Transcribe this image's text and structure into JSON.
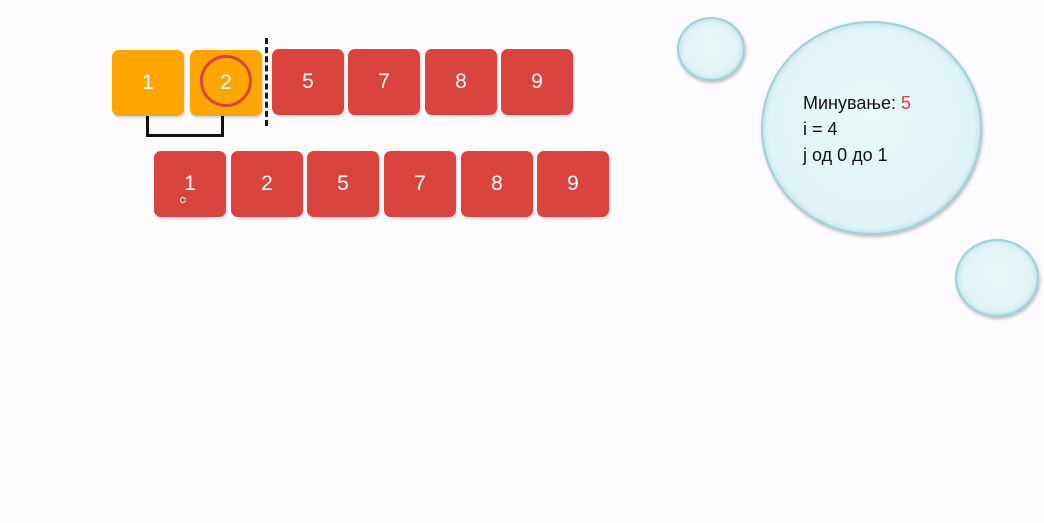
{
  "top_row": {
    "sorted": [
      "1",
      "2"
    ],
    "unsorted": [
      "5",
      "7",
      "8",
      "9"
    ]
  },
  "bottom_row": [
    "1",
    "2",
    "5",
    "7",
    "8",
    "9"
  ],
  "info": {
    "label_min": "Минување: ",
    "min_value": "5",
    "line_i": "i = 4",
    "line_j": "j од 0 до 1"
  },
  "colors": {
    "red": "#d9443f",
    "orange": "#ffa500",
    "bubble": "#dff4f6"
  }
}
